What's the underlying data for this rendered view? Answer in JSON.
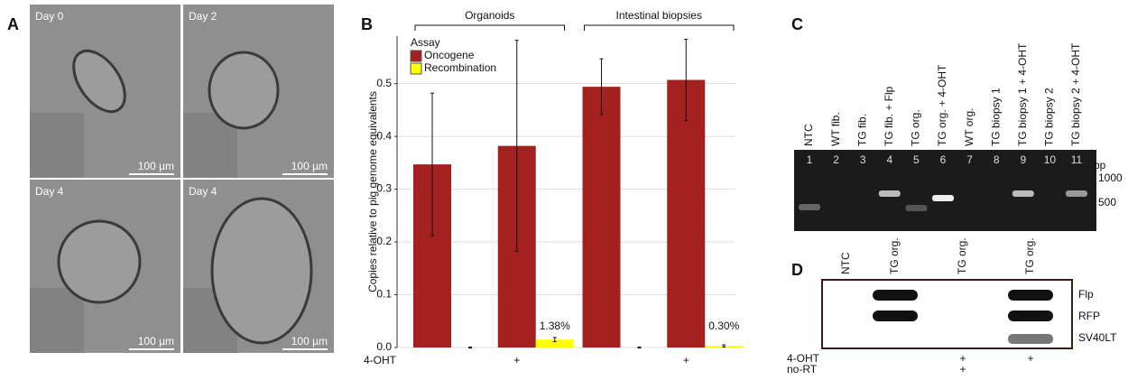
{
  "panel_a": {
    "letter": "A",
    "images": [
      {
        "label": "Day 0",
        "scale": "100 µm"
      },
      {
        "label": "Day 2",
        "scale": "100 µm"
      },
      {
        "label": "Day 4",
        "scale": "100 µm"
      },
      {
        "label": "Day 4",
        "scale": "100 µm"
      }
    ]
  },
  "chart_data": {
    "type": "bar",
    "letter": "B",
    "y_label": "Copies relative to pig genome equivalents",
    "legend_title": "Assay",
    "groups": [
      "Organoids",
      "Intestinal biopsies"
    ],
    "x_row_label": "4-OHT",
    "categories": [
      null,
      "+",
      null,
      "+"
    ],
    "series": [
      {
        "name": "Oncogene",
        "color": "#a3211f",
        "values": [
          0.347,
          0.382,
          0.494,
          0.507
        ],
        "errors": [
          0.135,
          0.2,
          0.053,
          0.077
        ]
      },
      {
        "name": "Recombination",
        "color": "#ffff00",
        "values": [
          0,
          0.015,
          0,
          0.003
        ],
        "errors": [
          0.001,
          0.004,
          0.001,
          0.002
        ]
      }
    ],
    "annotations": [
      "1.38%",
      "0.30%"
    ],
    "ylim": [
      0,
      0.59
    ],
    "yticks": [
      {
        "value": 0,
        "label": "0.0"
      },
      0.1,
      0.2,
      0.3,
      0.4,
      0.5
    ],
    "grid": true
  },
  "panel_c": {
    "letter": "C",
    "lanes": [
      "NTC",
      "WT fib.",
      "TG fib.",
      "TG fib. + Flp",
      "TG org.",
      "TG org. + 4-OHT",
      "WT org.",
      "TG biopsy 1",
      "TG biopsy 1 + 4-OHT",
      "TG biopsy 2",
      "TG biopsy 2 + 4-OHT"
    ],
    "numbers": [
      "1",
      "2",
      "3",
      "4",
      "5",
      "6",
      "7",
      "8",
      "9",
      "10",
      "11"
    ],
    "size_unit": "bp",
    "sizes": [
      "1000",
      "500"
    ]
  },
  "panel_d": {
    "letter": "D",
    "lanes": [
      "NTC",
      "TG org.",
      "TG org.",
      "TG org."
    ],
    "bands": [
      "Flp",
      "RFP",
      "SV40LT"
    ],
    "conditions": [
      {
        "label": "4-OHT",
        "marks": [
          null,
          null,
          "+",
          "+"
        ]
      },
      {
        "label": "no-RT",
        "marks": [
          null,
          null,
          "+",
          null
        ]
      }
    ]
  }
}
